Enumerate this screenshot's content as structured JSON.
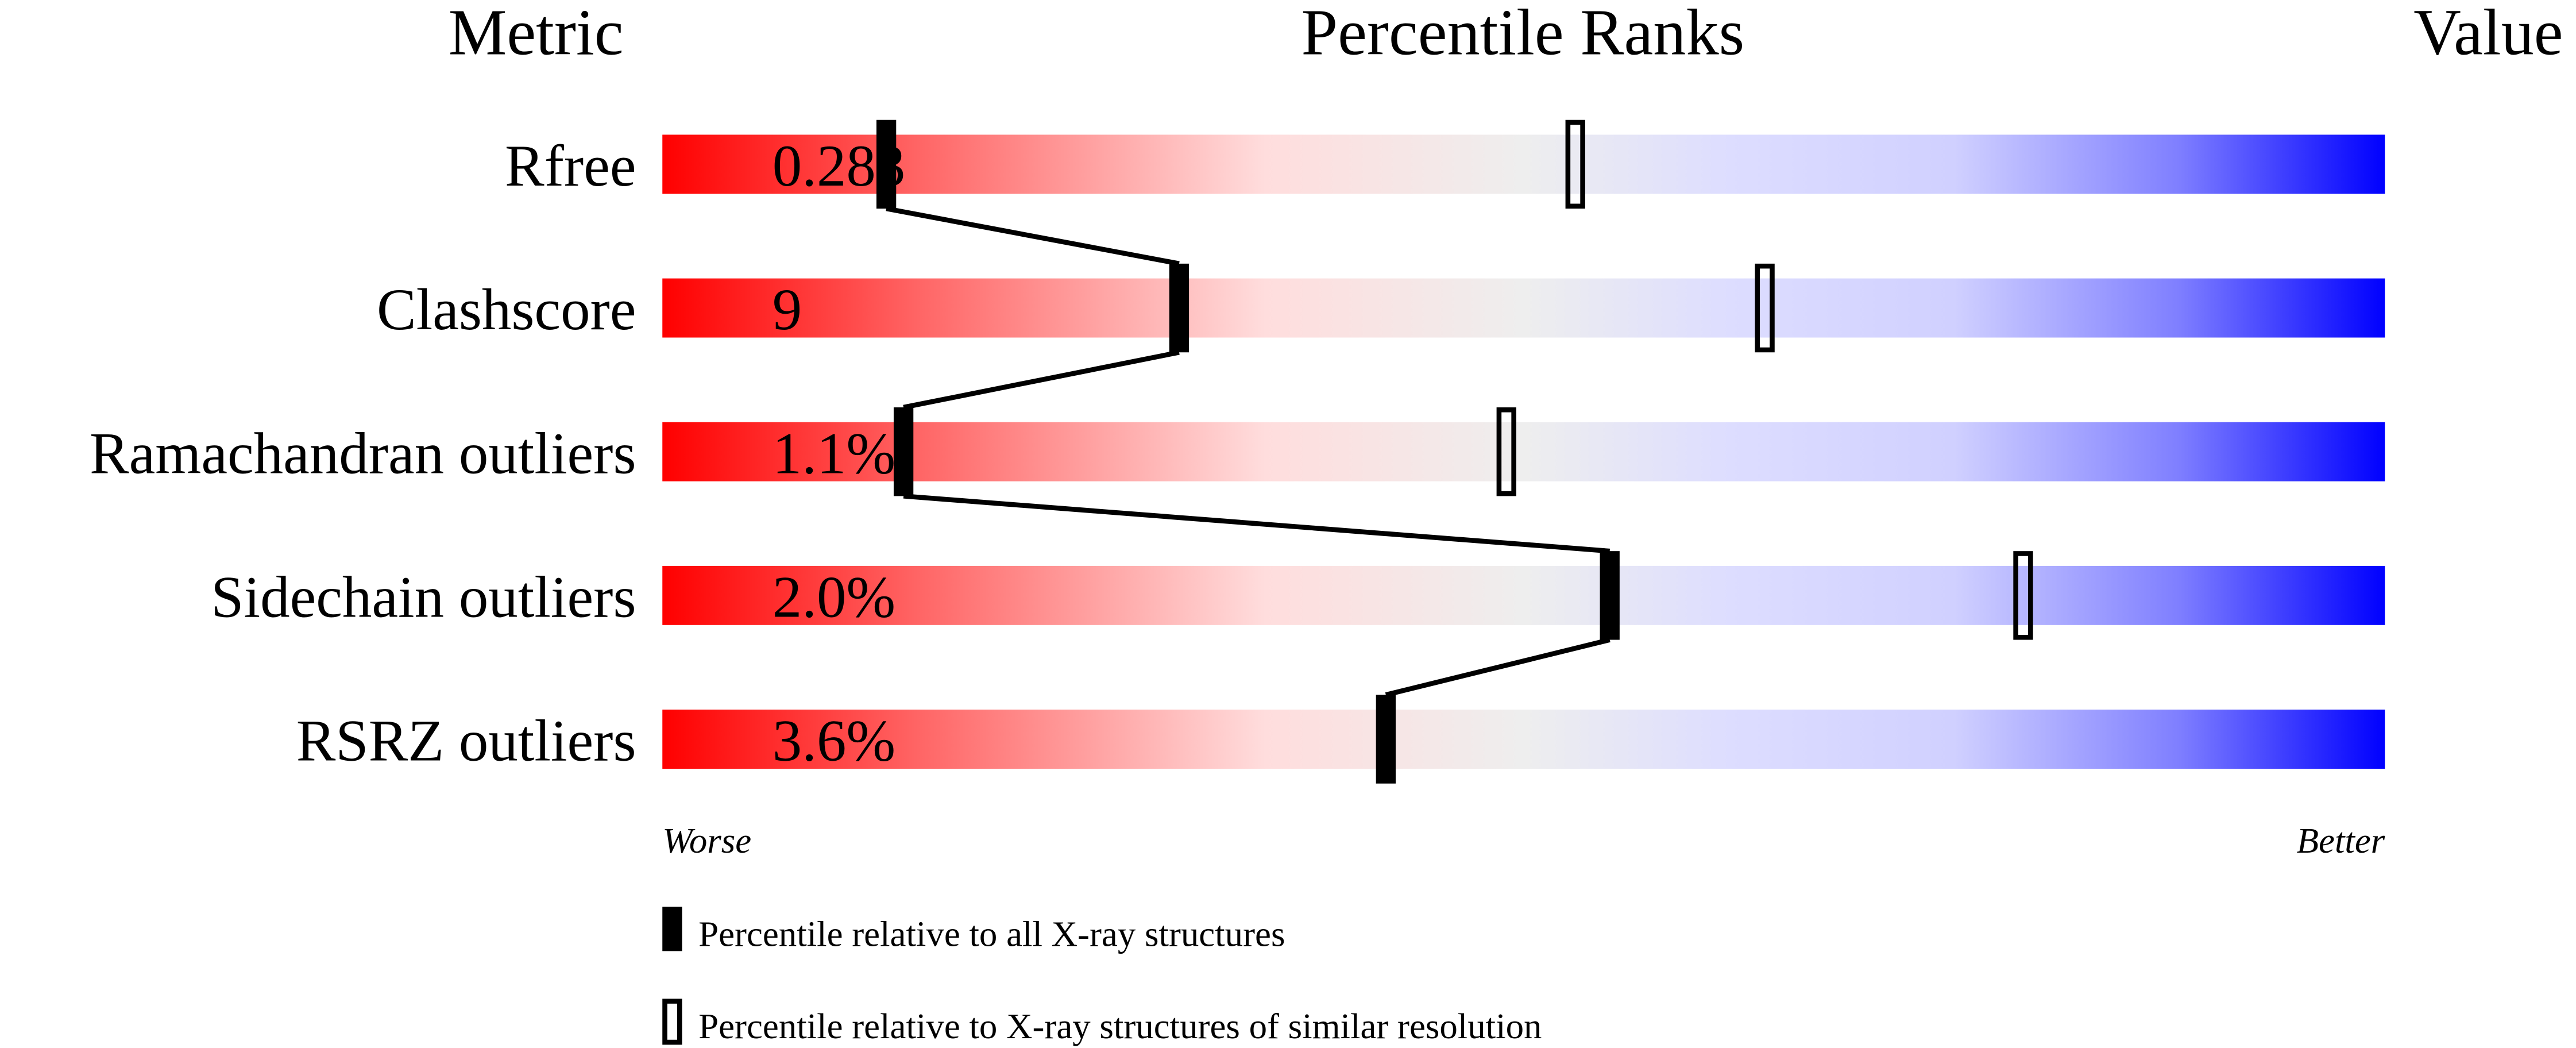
{
  "header": {
    "metric": "Metric",
    "title": "Percentile Ranks",
    "value": "Value"
  },
  "axis": {
    "left": "Worse",
    "right": "Better"
  },
  "legend": {
    "filled": "Percentile relative to all X-ray structures",
    "hollow": "Percentile relative to X-ray structures of similar resolution"
  },
  "colors": {
    "worse": "#ff0000",
    "middle": "#eeeeee",
    "better": "#0000ff",
    "marker": "#000000"
  },
  "chart_data": {
    "type": "bar",
    "title": "Percentile Ranks",
    "xlim": [
      0,
      100
    ],
    "categories": [
      "Rfree",
      "Clashscore",
      "Ramachandran outliers",
      "Sidechain outliers",
      "RSRZ outliers"
    ],
    "values_text": [
      "0.283",
      "9",
      "1.1%",
      "2.0%",
      "3.6%"
    ],
    "series": [
      {
        "name": "Percentile relative to all X-ray structures",
        "values": [
          13,
          30,
          14,
          55,
          42
        ]
      },
      {
        "name": "Percentile relative to X-ray structures of similar resolution",
        "values": [
          53,
          64,
          49,
          79,
          null
        ]
      }
    ]
  }
}
